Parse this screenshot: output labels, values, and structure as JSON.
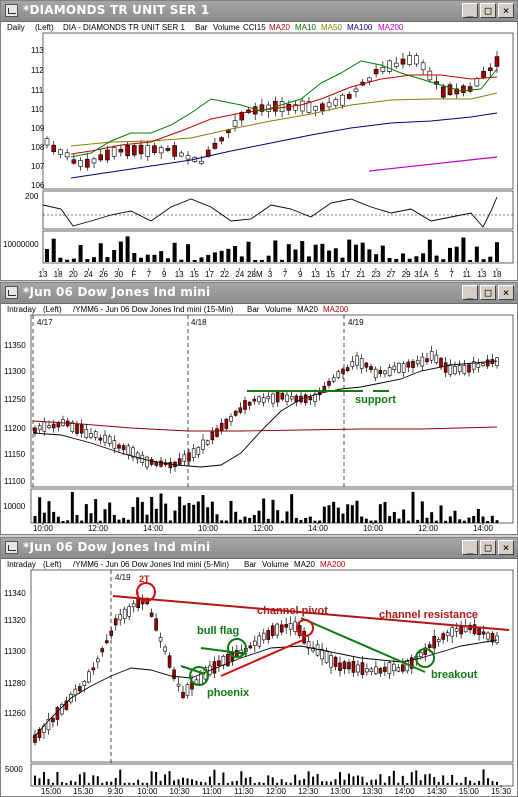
{
  "windows": [
    {
      "title": "*DIAMONDS TR UNIT SER 1",
      "header": {
        "period": "Daily",
        "scale": "(Left)",
        "symbol": "DIA - DIAMONDS TR UNIT SER 1",
        "mode": "Bar",
        "vol": "Volume",
        "cci": "CCI15",
        "ma20": "MA20",
        "ma10": "MA10",
        "ma50": "MA50",
        "ma100": "MA100",
        "ma200": "MA200"
      },
      "yticks": [
        "113",
        "112",
        "111",
        "110",
        "109",
        "108",
        "107",
        "106"
      ],
      "cci_label": "200",
      "vol_label": "10000000",
      "xticks": [
        "13",
        "18",
        "20",
        "24",
        "26",
        "30",
        "F",
        "7",
        "9",
        "13",
        "15",
        "17",
        "22",
        "24",
        "28M",
        "3",
        "7",
        "9",
        "13",
        "15",
        "17",
        "21",
        "23",
        "27",
        "29",
        "31A",
        "5",
        "7",
        "11",
        "13",
        "18"
      ]
    },
    {
      "title": "*Jun 06  Dow Jones Ind mini",
      "header": {
        "period": "Intraday",
        "scale": "(Left)",
        "symbol": "/YMM6 - Jun 06  Dow Jones Ind mini (15-Min)",
        "mode": "Bar",
        "vol": "Volume",
        "ma20": "MA20",
        "ma200": "MA200"
      },
      "yticks": [
        "11350",
        "11300",
        "11250",
        "11200",
        "11150",
        "11100"
      ],
      "vol_label": "10000",
      "date_labels": [
        "4/17",
        "4/18",
        "4/19"
      ],
      "annotation": "support",
      "xticks": [
        "10:00",
        "12:00",
        "14:00",
        "10:00",
        "12:00",
        "14:00",
        "10:00",
        "12:00",
        "14:00"
      ]
    },
    {
      "title": "*Jun 06  Dow Jones Ind mini",
      "header": {
        "period": "Intraday",
        "scale": "(Left)",
        "symbol": "/YMM6 - Jun 06  Dow Jones Ind mini (5-Min)",
        "mode": "Bar",
        "vol": "Volume",
        "ma20": "MA20",
        "ma200": "MA200"
      },
      "yticks": [
        "11340",
        "11320",
        "11300",
        "11280",
        "11260"
      ],
      "vol_label": "5000",
      "date_label": "4/19",
      "annotations": {
        "two_t": "2T",
        "channel_pivot": "channel pivot",
        "channel_resistance": "channel resistance",
        "bull_flag": "bull flag",
        "phoenix": "phoenix",
        "breakout": "breakout"
      },
      "xticks": [
        "15:00",
        "15:30",
        "9:30",
        "10:00",
        "10:30",
        "11:00",
        "11:30",
        "12:00",
        "12:30",
        "13:00",
        "13:30",
        "14:00",
        "14:30",
        "15:00",
        "15:30"
      ]
    }
  ],
  "buttons": {
    "minimize": "_",
    "maximize": "□",
    "close": "×"
  },
  "colors": {
    "ma20": "#c00000",
    "ma10": "#008000",
    "ma50": "#808000",
    "ma100": "#000080",
    "ma200": "#c000c0",
    "annotation_red": "#d01010",
    "annotation_green": "#107a10"
  }
}
